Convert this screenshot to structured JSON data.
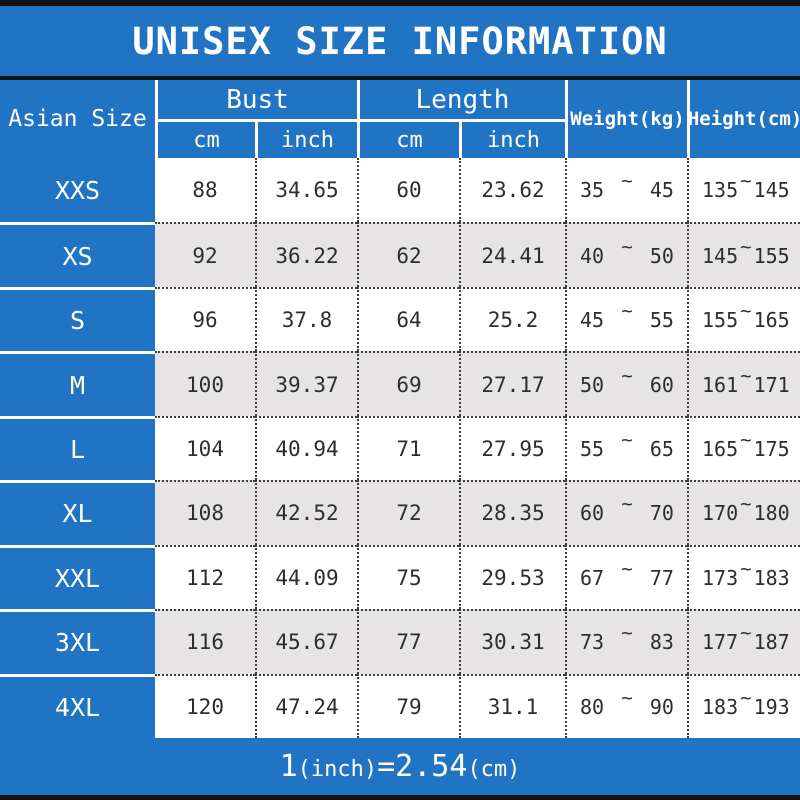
{
  "colors": {
    "blue": "#2173C4",
    "gray_row": "#E6E4E5",
    "black_bar": "#121212",
    "header_text": "#FFFFFF",
    "body_text": "#2D2D2D"
  },
  "chart_data": {
    "type": "table",
    "title": "UNISEX SIZE INFORMATION",
    "header": {
      "size_col": "Asian Size",
      "bust": {
        "label": "Bust",
        "sub": [
          "cm",
          "inch"
        ]
      },
      "length": {
        "label": "Length",
        "sub": [
          "cm",
          "inch"
        ]
      },
      "weight": "Weight(kg)",
      "height": "Height(cm)"
    },
    "separator": "~",
    "rows": [
      {
        "size": "XXS",
        "bust_cm": "88",
        "bust_inch": "34.65",
        "length_cm": "60",
        "length_inch": "23.62",
        "weight": [
          "35",
          "45"
        ],
        "height": [
          "135",
          "145"
        ]
      },
      {
        "size": "XS",
        "bust_cm": "92",
        "bust_inch": "36.22",
        "length_cm": "62",
        "length_inch": "24.41",
        "weight": [
          "40",
          "50"
        ],
        "height": [
          "145",
          "155"
        ]
      },
      {
        "size": "S",
        "bust_cm": "96",
        "bust_inch": "37.8",
        "length_cm": "64",
        "length_inch": "25.2",
        "weight": [
          "45",
          "55"
        ],
        "height": [
          "155",
          "165"
        ]
      },
      {
        "size": "M",
        "bust_cm": "100",
        "bust_inch": "39.37",
        "length_cm": "69",
        "length_inch": "27.17",
        "weight": [
          "50",
          "60"
        ],
        "height": [
          "161",
          "171"
        ]
      },
      {
        "size": "L",
        "bust_cm": "104",
        "bust_inch": "40.94",
        "length_cm": "71",
        "length_inch": "27.95",
        "weight": [
          "55",
          "65"
        ],
        "height": [
          "165",
          "175"
        ]
      },
      {
        "size": "XL",
        "bust_cm": "108",
        "bust_inch": "42.52",
        "length_cm": "72",
        "length_inch": "28.35",
        "weight": [
          "60",
          "70"
        ],
        "height": [
          "170",
          "180"
        ]
      },
      {
        "size": "XXL",
        "bust_cm": "112",
        "bust_inch": "44.09",
        "length_cm": "75",
        "length_inch": "29.53",
        "weight": [
          "67",
          "77"
        ],
        "height": [
          "173",
          "183"
        ]
      },
      {
        "size": "3XL",
        "bust_cm": "116",
        "bust_inch": "45.67",
        "length_cm": "77",
        "length_inch": "30.31",
        "weight": [
          "73",
          "83"
        ],
        "height": [
          "177",
          "187"
        ]
      },
      {
        "size": "4XL",
        "bust_cm": "120",
        "bust_inch": "47.24",
        "length_cm": "79",
        "length_inch": "31.1",
        "weight": [
          "80",
          "90"
        ],
        "height": [
          "183",
          "193"
        ]
      }
    ],
    "footer_note": "1(inch)=2.54(cm)"
  }
}
